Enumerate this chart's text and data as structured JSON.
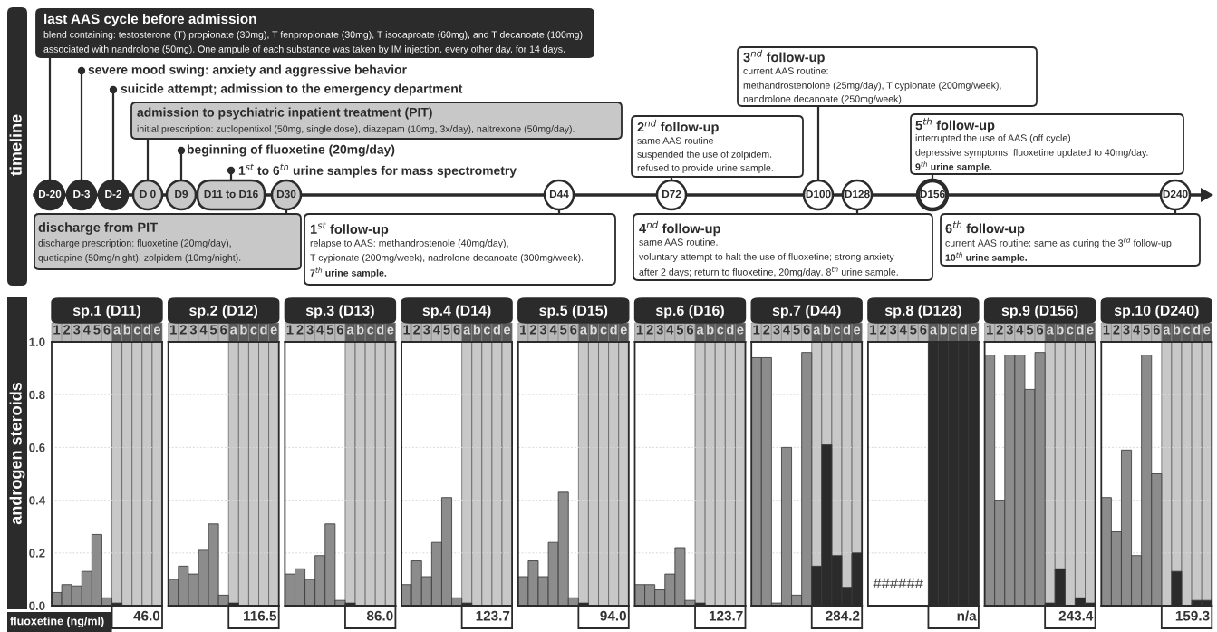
{
  "chart_data": [
    {
      "type": "other",
      "title": "timeline",
      "categories": [
        "D-20",
        "D-3",
        "D-2",
        "D 0",
        "D9",
        "D11 to D16",
        "D30",
        "D44",
        "D72",
        "D100",
        "D128",
        "D156",
        "D240"
      ],
      "colors": [
        "#2b2b2b",
        "#2b2b2b",
        "#2b2b2b",
        "#c8c8c8",
        "#c8c8c8",
        "#c8c8c8",
        "#c8c8c8",
        "#ffffff",
        "#ffffff",
        "#ffffff",
        "#ffffff",
        "#ffffff",
        "#ffffff"
      ],
      "annotations": [
        "last AAS cycle before admission",
        "blend containing: testosterone (T) propionate (30mg), T fenpropionate (30mg), T isocaproate (60mg), and T decanoate (100mg),",
        "associated with nandrolone (50mg). One ampule of each substance was taken by IM injection, every other day, for 14 days.",
        "severe mood swing: anxiety and aggressive behavior",
        "suicide attempt; admission to the emergency department",
        "admission to psychiatric inpatient treatment (PIT)",
        "initial prescription: zuclopentixol (50mg, single dose), diazepam (10mg, 3x/day), naltrexone (50mg/day).",
        "beginning of fluoxetine (20mg/day)",
        "1$^{st}$ to 6$^{th}$ urine samples for mass spectrometry",
        "discharge from PIT",
        "discharge prescription: fluoxetine (20mg/day),",
        "quetiapine (50mg/night), zolpidem (10mg/night).",
        "1$^{st}$ follow-up",
        "relapse to AAS: methandrostenole (40mg/day),",
        "T cypionate (200mg/week), nadrolone decanoate (300mg/week).",
        "7$^{th}$ urine sample.",
        "2$^{nd}$ follow-up",
        "same AAS routine",
        "suspended the use of zolpidem.",
        "refused to provide urine sample.",
        "3$^{nd}$ follow-up",
        "current AAS routine:",
        "methandrostenolone (25mg/day), T cypionate (200mg/week),",
        "nandrolone decanoate (250mg/week).",
        "4$^{nd}$ follow-up",
        "same AAS routine.",
        "voluntary attempt to halt the use of fluoxetine; strong anxiety",
        "after 2 days; return to fluoxetine, 20mg/day. 8$^{th}$ urine sample.",
        "5$^{th}$ follow-up",
        "interrupted the use of AAS (off cycle)",
        "depressive symptoms. fluoxetine updated to 40mg/day.",
        "9$^{th}$ urine sample.",
        "6$^{th}$ follow-up",
        "current AAS routine: same as during the 3$^{rd}$ follow-up",
        "10$^{th}$ urine sample."
      ]
    },
    {
      "type": "bar",
      "title": "sp.1 (D11)",
      "ylabel": "androgen steroids",
      "categories": [
        "1",
        "2",
        "3",
        "4",
        "5",
        "6",
        "a",
        "b",
        "c",
        "d",
        "e"
      ],
      "values": [
        0.05,
        0.08,
        0.075,
        0.13,
        0.27,
        0.03,
        0.01,
        0,
        0,
        0,
        0
      ],
      "colors": [
        "#8c8c8c",
        "#8c8c8c",
        "#8c8c8c",
        "#8c8c8c",
        "#8c8c8c",
        "#8c8c8c",
        "#2b2b2b",
        "#2b2b2b",
        "#2b2b2b",
        "#2b2b2b",
        "#2b2b2b"
      ],
      "ylim": [
        0,
        1.0
      ],
      "yticks": [
        {
          "value": 0,
          "label": "0.0"
        },
        0.2,
        0.4,
        0.6,
        0.8,
        {
          "value": 1,
          "label": "1.0"
        }
      ],
      "grid": "y",
      "annotations": [
        "fluoxetine (ng/ml)",
        "46.0"
      ]
    },
    {
      "type": "bar",
      "title": "sp.2 (D12)",
      "categories": [
        "1",
        "2",
        "3",
        "4",
        "5",
        "6",
        "a",
        "b",
        "c",
        "d",
        "e"
      ],
      "values": [
        0.1,
        0.15,
        0.12,
        0.21,
        0.31,
        0.04,
        0.01,
        0,
        0,
        0,
        0
      ],
      "colors": [
        "#8c8c8c",
        "#8c8c8c",
        "#8c8c8c",
        "#8c8c8c",
        "#8c8c8c",
        "#8c8c8c",
        "#2b2b2b",
        "#2b2b2b",
        "#2b2b2b",
        "#2b2b2b",
        "#2b2b2b"
      ],
      "ylim": [
        0,
        1.0
      ],
      "yticks": [
        0.2,
        0.4,
        0.6,
        0.8
      ],
      "tick_labels": "x",
      "grid": "y",
      "annotations": [
        "116.5"
      ]
    },
    {
      "type": "bar",
      "title": "sp.3 (D13)",
      "categories": [
        "1",
        "2",
        "3",
        "4",
        "5",
        "6",
        "a",
        "b",
        "c",
        "d",
        "e"
      ],
      "values": [
        0.12,
        0.14,
        0.1,
        0.19,
        0.31,
        0.02,
        0.01,
        0,
        0,
        0,
        0
      ],
      "colors": [
        "#8c8c8c",
        "#8c8c8c",
        "#8c8c8c",
        "#8c8c8c",
        "#8c8c8c",
        "#8c8c8c",
        "#2b2b2b",
        "#2b2b2b",
        "#2b2b2b",
        "#2b2b2b",
        "#2b2b2b"
      ],
      "ylim": [
        0,
        1.0
      ],
      "yticks": [
        0.2,
        0.4,
        0.6,
        0.8
      ],
      "tick_labels": "x",
      "grid": "y",
      "annotations": [
        "86.0"
      ]
    },
    {
      "type": "bar",
      "title": "sp.4 (D14)",
      "categories": [
        "1",
        "2",
        "3",
        "4",
        "5",
        "6",
        "a",
        "b",
        "c",
        "d",
        "e"
      ],
      "values": [
        0.08,
        0.17,
        0.11,
        0.24,
        0.41,
        0.03,
        0.01,
        0,
        0,
        0,
        0
      ],
      "colors": [
        "#8c8c8c",
        "#8c8c8c",
        "#8c8c8c",
        "#8c8c8c",
        "#8c8c8c",
        "#8c8c8c",
        "#2b2b2b",
        "#2b2b2b",
        "#2b2b2b",
        "#2b2b2b",
        "#2b2b2b"
      ],
      "ylim": [
        0,
        1.0
      ],
      "yticks": [
        0.2,
        0.4,
        0.6,
        0.8
      ],
      "tick_labels": "x",
      "grid": "y",
      "annotations": [
        "123.7"
      ]
    },
    {
      "type": "bar",
      "title": "sp.5 (D15)",
      "categories": [
        "1",
        "2",
        "3",
        "4",
        "5",
        "6",
        "a",
        "b",
        "c",
        "d",
        "e"
      ],
      "values": [
        0.11,
        0.17,
        0.11,
        0.24,
        0.43,
        0.03,
        0.01,
        0,
        0,
        0,
        0
      ],
      "colors": [
        "#8c8c8c",
        "#8c8c8c",
        "#8c8c8c",
        "#8c8c8c",
        "#8c8c8c",
        "#8c8c8c",
        "#2b2b2b",
        "#2b2b2b",
        "#2b2b2b",
        "#2b2b2b",
        "#2b2b2b"
      ],
      "ylim": [
        0,
        1.0
      ],
      "yticks": [
        0.2,
        0.4,
        0.6,
        0.8
      ],
      "tick_labels": "x",
      "grid": "y",
      "annotations": [
        "94.0"
      ]
    },
    {
      "type": "bar",
      "title": "sp.6 (D16)",
      "categories": [
        "1",
        "2",
        "3",
        "4",
        "5",
        "6",
        "a",
        "b",
        "c",
        "d",
        "e"
      ],
      "values": [
        0.08,
        0.08,
        0.06,
        0.12,
        0.22,
        0.02,
        0.01,
        0,
        0,
        0,
        0
      ],
      "colors": [
        "#8c8c8c",
        "#8c8c8c",
        "#8c8c8c",
        "#8c8c8c",
        "#8c8c8c",
        "#8c8c8c",
        "#2b2b2b",
        "#2b2b2b",
        "#2b2b2b",
        "#2b2b2b",
        "#2b2b2b"
      ],
      "ylim": [
        0,
        1.0
      ],
      "yticks": [
        0.2,
        0.4,
        0.6,
        0.8
      ],
      "tick_labels": "x",
      "grid": "y",
      "annotations": [
        "123.7"
      ]
    },
    {
      "type": "bar",
      "title": "sp.7 (D44)",
      "categories": [
        "1",
        "2",
        "3",
        "4",
        "5",
        "6",
        "a",
        "b",
        "c",
        "d",
        "e"
      ],
      "values": [
        0.94,
        0.94,
        0.01,
        0.6,
        0.04,
        0.96,
        0.15,
        0.61,
        0.19,
        0.07,
        0.2
      ],
      "colors": [
        "#8c8c8c",
        "#8c8c8c",
        "#8c8c8c",
        "#8c8c8c",
        "#8c8c8c",
        "#8c8c8c",
        "#2b2b2b",
        "#2b2b2b",
        "#2b2b2b",
        "#2b2b2b",
        "#2b2b2b"
      ],
      "ylim": [
        0,
        1.0
      ],
      "yticks": [
        0.2,
        0.4,
        0.6,
        0.8
      ],
      "tick_labels": "x",
      "grid": "y",
      "annotations": [
        "284.2"
      ]
    },
    {
      "type": "bar",
      "title": "sp.8 (D128)",
      "categories": [
        "1",
        "2",
        "3",
        "4",
        "5",
        "6",
        "a",
        "b",
        "c",
        "d",
        "e"
      ],
      "values": [
        null,
        null,
        null,
        null,
        null,
        null,
        1.0,
        1.0,
        1.0,
        1.0,
        1.0
      ],
      "colors": [
        "#8c8c8c",
        "#8c8c8c",
        "#8c8c8c",
        "#8c8c8c",
        "#8c8c8c",
        "#8c8c8c",
        "#2b2b2b",
        "#2b2b2b",
        "#2b2b2b",
        "#2b2b2b",
        "#2b2b2b"
      ],
      "ylim": [
        0,
        1.0
      ],
      "yticks": [
        0.2,
        0.4,
        0.6,
        0.8
      ],
      "tick_labels": "x",
      "grid": "y",
      "annotations": [
        "######",
        "n/a"
      ]
    },
    {
      "type": "bar",
      "title": "sp.9 (D156)",
      "categories": [
        "1",
        "2",
        "3",
        "4",
        "5",
        "6",
        "a",
        "b",
        "c",
        "d",
        "e"
      ],
      "values": [
        0.95,
        0.4,
        0.95,
        0.95,
        0.82,
        0.96,
        0.01,
        0.14,
        0,
        0.03,
        0.01
      ],
      "colors": [
        "#8c8c8c",
        "#8c8c8c",
        "#8c8c8c",
        "#8c8c8c",
        "#8c8c8c",
        "#8c8c8c",
        "#2b2b2b",
        "#2b2b2b",
        "#2b2b2b",
        "#2b2b2b",
        "#2b2b2b"
      ],
      "ylim": [
        0,
        1.0
      ],
      "yticks": [
        0.2,
        0.4,
        0.6,
        0.8
      ],
      "tick_labels": "x",
      "grid": "y",
      "annotations": [
        "243.4"
      ]
    },
    {
      "type": "bar",
      "title": "sp.10 (D240)",
      "categories": [
        "1",
        "2",
        "3",
        "4",
        "5",
        "6",
        "a",
        "b",
        "c",
        "d",
        "e"
      ],
      "values": [
        0.41,
        0.28,
        0.59,
        0.19,
        0.95,
        0.5,
        0,
        0.13,
        0,
        0.02,
        0.02
      ],
      "colors": [
        "#8c8c8c",
        "#8c8c8c",
        "#8c8c8c",
        "#8c8c8c",
        "#8c8c8c",
        "#8c8c8c",
        "#2b2b2b",
        "#2b2b2b",
        "#2b2b2b",
        "#2b2b2b",
        "#2b2b2b"
      ],
      "ylim": [
        0,
        1.0
      ],
      "yticks": [
        0.2,
        0.4,
        0.6,
        0.8
      ],
      "tick_labels": "x",
      "grid": "y",
      "annotations": [
        "159.3"
      ]
    }
  ]
}
